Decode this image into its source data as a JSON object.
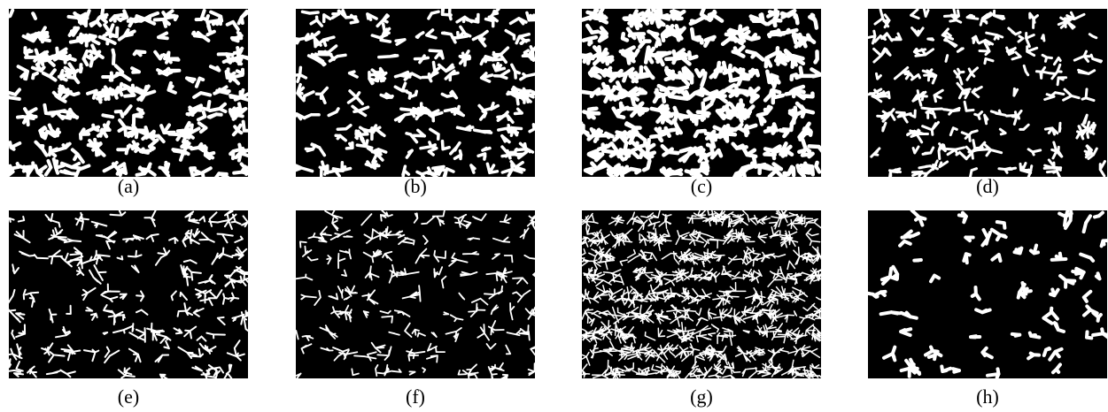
{
  "figure": {
    "panels": [
      {
        "caption": "(a)"
      },
      {
        "caption": "(b)"
      },
      {
        "caption": "(c)"
      },
      {
        "caption": "(d)"
      },
      {
        "caption": "(e)"
      },
      {
        "caption": "(f)"
      },
      {
        "caption": "(g)"
      },
      {
        "caption": "(h)"
      }
    ]
  }
}
